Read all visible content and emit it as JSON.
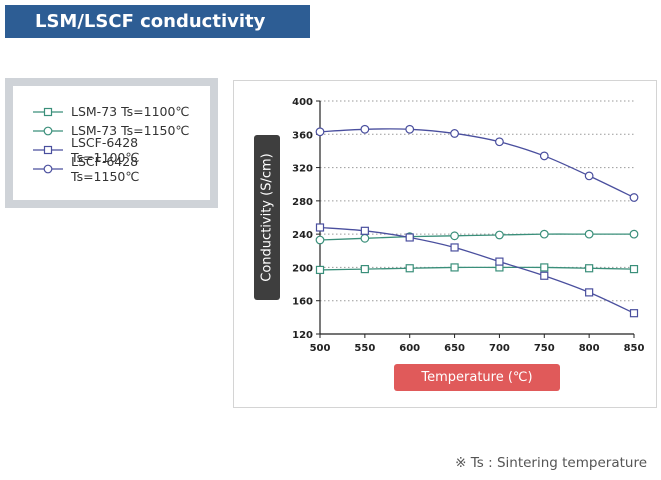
{
  "title": "LSM/LSCF conductivity",
  "footnote": "※ Ts : Sintering temperature",
  "colors": {
    "title_bg": "#2d5d94",
    "lsm": "#3a8f7a",
    "lscf": "#4a4f9e",
    "xlabel_bg": "#e05a5a",
    "ylabel_bg": "#3e3e3e"
  },
  "chart_data": {
    "type": "line",
    "xlabel": "Temperature (℃)",
    "ylabel": "Conductivity (S/cm)",
    "x": [
      500,
      550,
      600,
      650,
      700,
      750,
      800,
      850
    ],
    "xlim": [
      500,
      850
    ],
    "ylim": [
      120,
      400
    ],
    "xticks": [
      "500",
      "550",
      "600",
      "650",
      "700",
      "750",
      "800",
      "850"
    ],
    "yticks": [
      "120",
      "160",
      "200",
      "240",
      "280",
      "320",
      "360",
      "400"
    ],
    "grid": "horizontal dotted",
    "legend_position": "outside-left",
    "series": [
      {
        "name": "LSM-73 Ts=1100℃",
        "marker": "square",
        "color": "#3a8f7a",
        "values": [
          197,
          198,
          199,
          200,
          200,
          200,
          199,
          198
        ]
      },
      {
        "name": "LSM-73 Ts=1150℃",
        "marker": "circle",
        "color": "#3a8f7a",
        "values": [
          233,
          235,
          237,
          238,
          239,
          240,
          240,
          240
        ]
      },
      {
        "name": "LSCF-6428 Ts=1100℃",
        "marker": "square",
        "color": "#4a4f9e",
        "values": [
          248,
          244,
          236,
          224,
          207,
          190,
          170,
          145
        ]
      },
      {
        "name": "LSCF-6428 Ts=1150℃",
        "marker": "circle",
        "color": "#4a4f9e",
        "values": [
          363,
          366,
          366,
          361,
          351,
          334,
          310,
          284
        ]
      }
    ]
  }
}
